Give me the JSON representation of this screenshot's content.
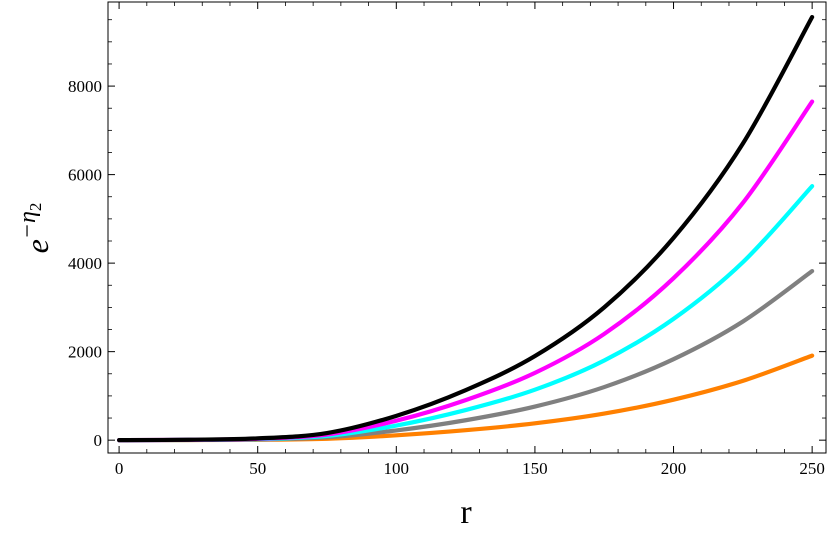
{
  "chart_data": {
    "type": "line",
    "xlabel": "r",
    "ylabel": "e",
    "ylabel_superscript": "−η",
    "ylabel_subscript": "2",
    "xlim": [
      -4,
      255
    ],
    "ylim": [
      -290,
      9900
    ],
    "x_ticks": [
      0,
      50,
      100,
      150,
      200,
      250
    ],
    "y_ticks": [
      0,
      2000,
      4000,
      6000,
      8000
    ],
    "x_tick_labels": [
      "0",
      "50",
      "100",
      "150",
      "200",
      "250"
    ],
    "y_tick_labels": [
      "0",
      "2000",
      "4000",
      "6000",
      "8000"
    ],
    "grid": false,
    "legend": "none",
    "x": [
      0,
      25,
      50,
      75,
      100,
      125,
      150,
      175,
      200,
      225,
      250
    ],
    "series": [
      {
        "color": "#000000",
        "values": [
          0,
          10,
          40,
          160,
          550,
          1130,
          1900,
          3000,
          4570,
          6700,
          9560
        ]
      },
      {
        "color": "#ff00ff",
        "values": [
          0,
          8,
          32,
          128,
          440,
          905,
          1520,
          2400,
          3660,
          5360,
          7650
        ]
      },
      {
        "color": "#00ffff",
        "values": [
          0,
          6,
          24,
          96,
          330,
          680,
          1140,
          1800,
          2740,
          4020,
          5740
        ]
      },
      {
        "color": "#808080",
        "values": [
          0,
          4,
          16,
          64,
          220,
          450,
          760,
          1200,
          1830,
          2680,
          3820
        ]
      },
      {
        "color": "#ff8000",
        "values": [
          0,
          2,
          8,
          32,
          110,
          225,
          380,
          600,
          915,
          1340,
          1910
        ]
      }
    ]
  }
}
